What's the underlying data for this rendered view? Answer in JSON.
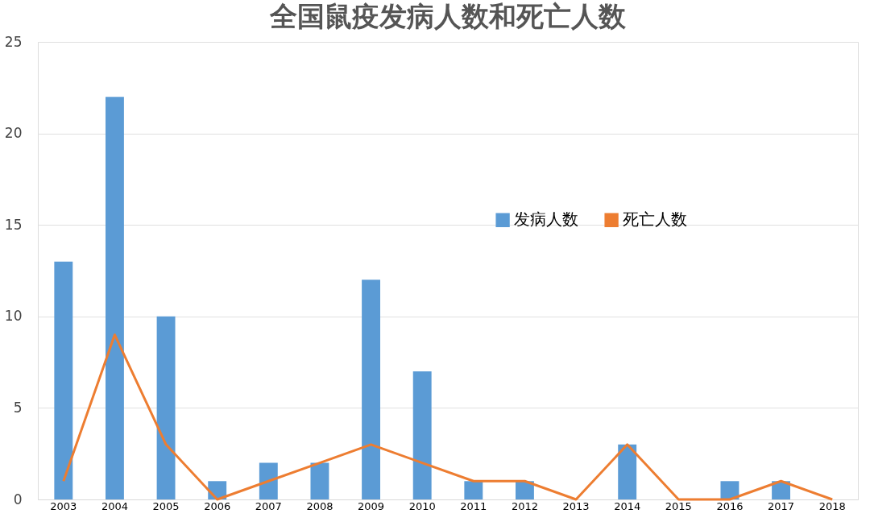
{
  "chart_data": {
    "type": "bar",
    "title": "全国鼠疫发病人数和死亡人数",
    "categories": [
      "2003",
      "2004",
      "2005",
      "2006",
      "2007",
      "2008",
      "2009",
      "2010",
      "2011",
      "2012",
      "2013",
      "2014",
      "2015",
      "2016",
      "2017",
      "2018"
    ],
    "series": [
      {
        "name": "发病人数",
        "color": "#5b9bd5",
        "values": [
          13,
          22,
          10,
          1,
          2,
          2,
          12,
          7,
          1,
          1,
          0,
          3,
          0,
          1,
          1,
          0
        ]
      },
      {
        "name": "死亡人数",
        "color": "#ed7d31",
        "type": "line",
        "values": [
          1,
          9,
          3,
          0,
          1,
          2,
          3,
          2,
          1,
          1,
          0,
          3,
          0,
          0,
          1,
          0
        ]
      }
    ],
    "ylim": [
      0,
      25
    ],
    "yticks": [
      0,
      5,
      10,
      15,
      20,
      25
    ],
    "grid": "y",
    "legend": "right",
    "line_style": "solid",
    "marker": "none"
  }
}
